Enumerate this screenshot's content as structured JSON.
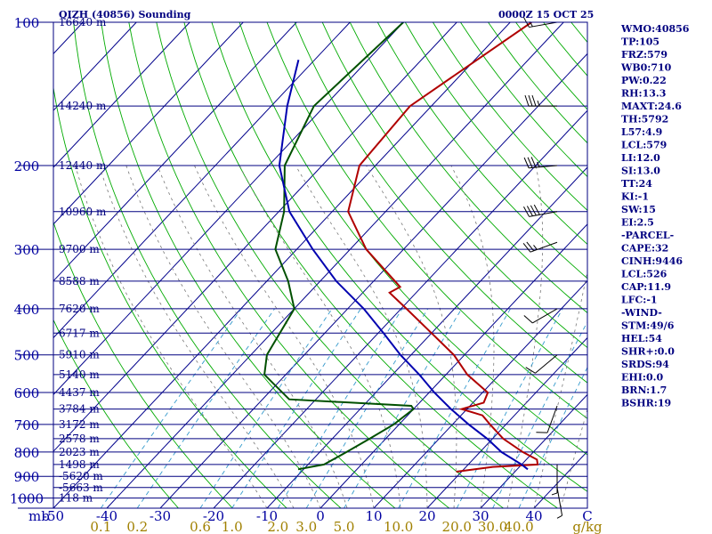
{
  "header": {
    "station": "QIZH (40856) Sounding",
    "time": "0000Z 15 OCT 25"
  },
  "indices": [
    "WMO:40856",
    "TP:105",
    "FRZ:579",
    "WB0:710",
    "PW:0.22",
    "RH:13.3",
    "MAXT:24.6",
    "TH:5792",
    "L57:4.9",
    "LCL:579",
    "LI:12.0",
    "SI:13.0",
    "TT:24",
    "KI:-1",
    "SW:15",
    "EI:2.5",
    "-PARCEL-",
    "CAPE:32",
    "CINH:9446",
    "LCL:526",
    "CAP:11.9",
    "LFC:-1",
    "-WIND-",
    "STM:49/6",
    "HEL:54",
    "SHR+:0.0",
    "SRDS:94",
    "EHI:0.0",
    "BRN:1.7",
    "BSHR:19"
  ],
  "colors": {
    "isobar": "#000080",
    "isotherm": "#00008b",
    "dry_adiabat": "#00aa00",
    "moist_adiabat": "#777777",
    "mixing_ratio": "#3399cc",
    "temperature": "#b00000",
    "dewpoint": "#005000",
    "parcel": "#0000b0",
    "wind": "#000000"
  },
  "chart_data": {
    "type": "skew-t",
    "title": "QIZH (40856) Sounding",
    "axis_unit_label": "mb",
    "mixing_ratio_unit": "g/kg",
    "pressure_levels": [
      100,
      200,
      300,
      400,
      500,
      600,
      700,
      800,
      900,
      1000
    ],
    "pressure_range": [
      100,
      1050
    ],
    "temperature_ticks": [
      "-50",
      "-40",
      "-30",
      "-20",
      "-10",
      "0",
      "10",
      "20",
      "30",
      "40",
      "C"
    ],
    "temperature_range": [
      -50,
      50
    ],
    "mixing_ratio_labels": [
      "0.1",
      "0.2",
      "0.6",
      "1.0",
      "2.0",
      "3.0",
      "5.0",
      "10.0",
      "20.0",
      "30.0",
      "40.0"
    ],
    "height_labels": [
      {
        "p": 100,
        "label": "16640 m"
      },
      {
        "p": 150,
        "label": "14240 m"
      },
      {
        "p": 200,
        "label": "12440 m"
      },
      {
        "p": 250,
        "label": "10960 m"
      },
      {
        "p": 300,
        "label": "9700 m"
      },
      {
        "p": 350,
        "label": "8588 m"
      },
      {
        "p": 400,
        "label": "7620 m"
      },
      {
        "p": 450,
        "label": "6717 m"
      },
      {
        "p": 500,
        "label": "5910 m"
      },
      {
        "p": 550,
        "label": "5140 m"
      },
      {
        "p": 600,
        "label": "4437 m"
      },
      {
        "p": 650,
        "label": "3784 m"
      },
      {
        "p": 700,
        "label": "3172 m"
      },
      {
        "p": 750,
        "label": "2578 m"
      },
      {
        "p": 800,
        "label": "2023 m"
      },
      {
        "p": 850,
        "label": "1498 m"
      },
      {
        "p": 900,
        "label": "-5620 m"
      },
      {
        "p": 950,
        "label": "-5663 m"
      },
      {
        "p": 1000,
        "label": "118 m"
      }
    ],
    "series": [
      {
        "name": "Temperature",
        "points": [
          [
            100,
            -46
          ],
          [
            150,
            -54
          ],
          [
            200,
            -53
          ],
          [
            250,
            -47
          ],
          [
            300,
            -37
          ],
          [
            350,
            -26
          ],
          [
            360,
            -24
          ],
          [
            370,
            -25
          ],
          [
            400,
            -19
          ],
          [
            450,
            -10
          ],
          [
            500,
            -2
          ],
          [
            550,
            4
          ],
          [
            600,
            11
          ],
          [
            630,
            12
          ],
          [
            650,
            9
          ],
          [
            670,
            14
          ],
          [
            700,
            17
          ],
          [
            750,
            22
          ],
          [
            800,
            28
          ],
          [
            830,
            32
          ],
          [
            850,
            33
          ],
          [
            860,
            25
          ],
          [
            880,
            19
          ]
        ]
      },
      {
        "name": "Dewpoint",
        "points": [
          [
            100,
            -70
          ],
          [
            150,
            -72
          ],
          [
            200,
            -67
          ],
          [
            250,
            -59
          ],
          [
            300,
            -54
          ],
          [
            350,
            -46
          ],
          [
            400,
            -40
          ],
          [
            500,
            -37
          ],
          [
            550,
            -34
          ],
          [
            620,
            -25
          ],
          [
            640,
            -1
          ],
          [
            650,
            0
          ],
          [
            700,
            -1
          ],
          [
            750,
            -3
          ],
          [
            800,
            -5
          ],
          [
            850,
            -7
          ],
          [
            870,
            -11
          ]
        ]
      },
      {
        "name": "Parcel",
        "points": [
          [
            120,
            -83
          ],
          [
            150,
            -77
          ],
          [
            200,
            -68
          ],
          [
            250,
            -58
          ],
          [
            300,
            -47
          ],
          [
            350,
            -37
          ],
          [
            400,
            -27
          ],
          [
            450,
            -19
          ],
          [
            500,
            -12
          ],
          [
            550,
            -5
          ],
          [
            600,
            1
          ],
          [
            650,
            7
          ],
          [
            700,
            13
          ],
          [
            750,
            19
          ],
          [
            800,
            24
          ],
          [
            850,
            30
          ],
          [
            870,
            32
          ]
        ]
      }
    ],
    "wind_barbs": [
      {
        "p": 100,
        "dir": 260,
        "kt": 15
      },
      {
        "p": 150,
        "dir": 270,
        "kt": 35
      },
      {
        "p": 200,
        "dir": 265,
        "kt": 35
      },
      {
        "p": 250,
        "dir": 260,
        "kt": 40
      },
      {
        "p": 290,
        "dir": 250,
        "kt": 25
      },
      {
        "p": 400,
        "dir": 240,
        "kt": 10
      },
      {
        "p": 500,
        "dir": 230,
        "kt": 10
      },
      {
        "p": 640,
        "dir": 200,
        "kt": 10
      },
      {
        "p": 850,
        "dir": 180,
        "kt": 5
      },
      {
        "p": 950,
        "dir": 170,
        "kt": 5
      }
    ]
  }
}
